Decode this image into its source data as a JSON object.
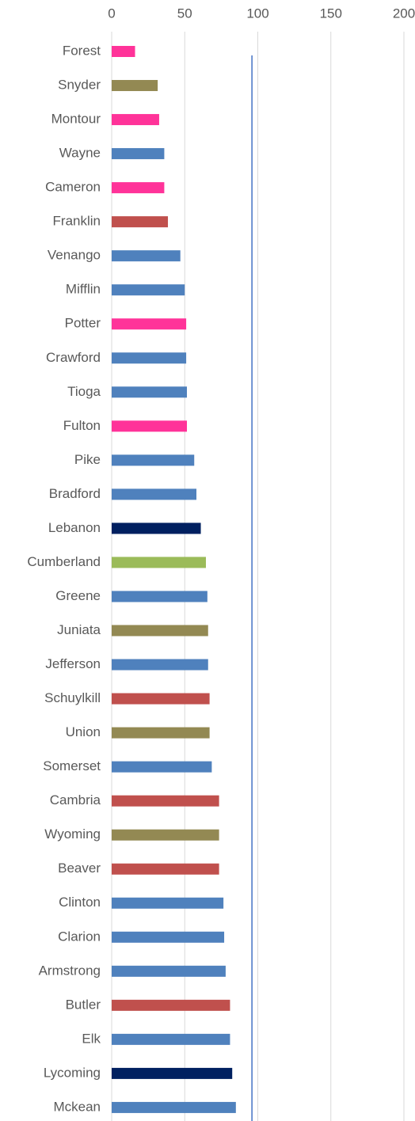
{
  "chart_data": {
    "type": "bar",
    "orientation": "horizontal",
    "categories": [
      "Forest",
      "Snyder",
      "Montour",
      "Wayne",
      "Cameron",
      "Franklin",
      "Venango",
      "Mifflin",
      "Potter",
      "Crawford",
      "Tioga",
      "Fulton",
      "Pike",
      "Bradford",
      "Lebanon",
      "Cumberland",
      "Greene",
      "Juniata",
      "Jefferson",
      "Schuylkill",
      "Union",
      "Somerset",
      "Cambria",
      "Wyoming",
      "Beaver",
      "Clinton",
      "Clarion",
      "Armstrong",
      "Butler",
      "Elk",
      "Lycoming",
      "Mckean"
    ],
    "values": [
      16,
      31.5,
      32.5,
      36,
      36,
      38.5,
      47,
      50,
      51,
      51,
      51.5,
      51.5,
      56.5,
      58,
      61,
      64.5,
      65.5,
      66,
      66,
      67,
      67,
      68.5,
      73.5,
      73.5,
      73.5,
      76.5,
      77,
      78,
      81,
      81,
      82.5,
      85
    ],
    "colors": [
      "#ff3399",
      "#938953",
      "#ff3399",
      "#4f81bd",
      "#ff3399",
      "#c0504d",
      "#4f81bd",
      "#4f81bd",
      "#ff3399",
      "#4f81bd",
      "#4f81bd",
      "#ff3399",
      "#4f81bd",
      "#4f81bd",
      "#002060",
      "#9bbb59",
      "#4f81bd",
      "#938953",
      "#4f81bd",
      "#c0504d",
      "#938953",
      "#4f81bd",
      "#c0504d",
      "#938953",
      "#c0504d",
      "#4f81bd",
      "#4f81bd",
      "#4f81bd",
      "#c0504d",
      "#4f81bd",
      "#002060",
      "#4f81bd"
    ],
    "reference_line": 96,
    "reference_color": "#4472c4",
    "xlim": [
      0,
      200
    ],
    "xticks": [
      0,
      50,
      100,
      150,
      200
    ],
    "grid": true
  }
}
